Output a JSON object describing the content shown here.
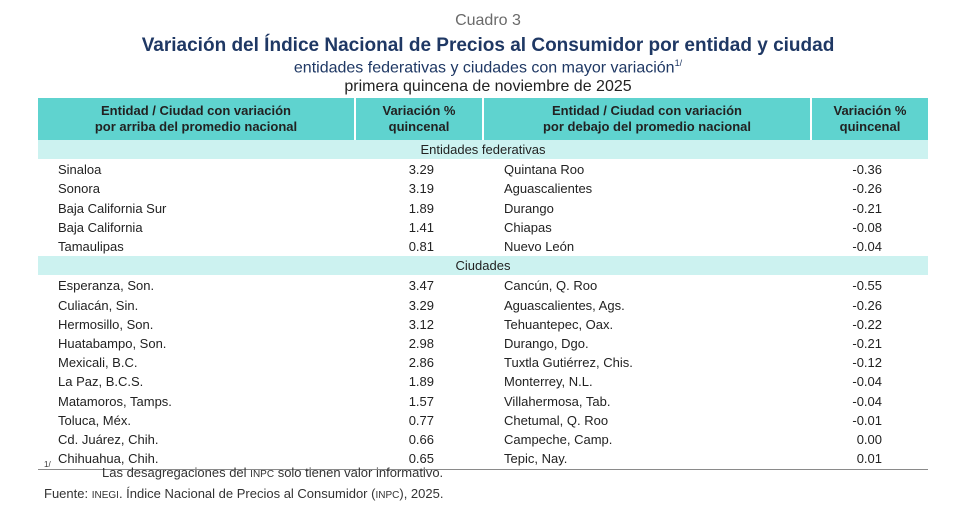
{
  "header": {
    "cuadro": "Cuadro 3",
    "title": "Variación del Índice Nacional de Precios al Consumidor por entidad y ciudad",
    "subtitle": "entidades federativas y ciudades con mayor variación",
    "subtitle_note": "1/",
    "period": "primera quincena de noviembre de 2025"
  },
  "columns": {
    "above_label": "Entidad / Ciudad con variación\npor arriba del promedio nacional",
    "above_value": "Variación %\nquincenal",
    "below_label": "Entidad / Ciudad con variación\npor debajo del promedio nacional",
    "below_value": "Variación %\nquincenal"
  },
  "sections": [
    {
      "title": "Entidades federativas",
      "rows": [
        {
          "above": "Sinaloa",
          "above_value": "3.29",
          "below": "Quintana Roo",
          "below_value": "-0.36"
        },
        {
          "above": "Sonora",
          "above_value": "3.19",
          "below": "Aguascalientes",
          "below_value": "-0.26"
        },
        {
          "above": "Baja California Sur",
          "above_value": "1.89",
          "below": "Durango",
          "below_value": "-0.21"
        },
        {
          "above": "Baja California",
          "above_value": "1.41",
          "below": "Chiapas",
          "below_value": "-0.08"
        },
        {
          "above": "Tamaulipas",
          "above_value": "0.81",
          "below": "Nuevo León",
          "below_value": "-0.04"
        }
      ]
    },
    {
      "title": "Ciudades",
      "rows": [
        {
          "above": "Esperanza, Son.",
          "above_value": "3.47",
          "below": "Cancún, Q. Roo",
          "below_value": "-0.55"
        },
        {
          "above": "Culiacán, Sin.",
          "above_value": "3.29",
          "below": "Aguascalientes, Ags.",
          "below_value": "-0.26"
        },
        {
          "above": "Hermosillo, Son.",
          "above_value": "3.12",
          "below": "Tehuantepec, Oax.",
          "below_value": "-0.22"
        },
        {
          "above": "Huatabampo, Son.",
          "above_value": "2.98",
          "below": "Durango, Dgo.",
          "below_value": "-0.21"
        },
        {
          "above": "Mexicali, B.C.",
          "above_value": "2.86",
          "below": "Tuxtla Gutiérrez, Chis.",
          "below_value": "-0.12"
        },
        {
          "above": "La Paz, B.C.S.",
          "above_value": "1.89",
          "below": "Monterrey, N.L.",
          "below_value": "-0.04"
        },
        {
          "above": "Matamoros, Tamps.",
          "above_value": "1.57",
          "below": "Villahermosa, Tab.",
          "below_value": "-0.04"
        },
        {
          "above": "Toluca, Méx.",
          "above_value": "0.77",
          "below": "Chetumal, Q. Roo",
          "below_value": "-0.01"
        },
        {
          "above": "Cd. Juárez, Chih.",
          "above_value": "0.66",
          "below": "Campeche, Camp.",
          "below_value": "0.00"
        },
        {
          "above": "Chihuahua, Chih.",
          "above_value": "0.65",
          "below": "Tepic, Nay.",
          "below_value": "0.01"
        }
      ]
    }
  ],
  "footnote": {
    "mark": "1/",
    "text_before": "Las desagregaciones del ",
    "text_abbr": "INPC",
    "text_after": " solo tienen valor informativo."
  },
  "source": {
    "before": "Fuente: ",
    "org": "INEGI",
    "middle": ". Índice Nacional de Precios al Consumidor (",
    "abbr": "INPC",
    "after": "), 2025."
  },
  "colors": {
    "header_bg": "#5fd3cf",
    "section_bg": "#ccf2f0",
    "title_color": "#1f3864"
  }
}
